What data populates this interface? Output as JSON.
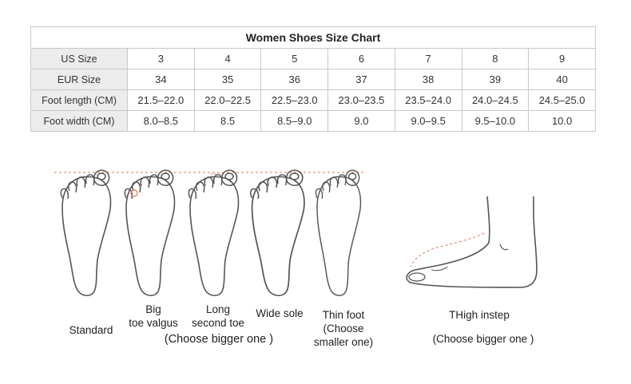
{
  "table": {
    "title": "Women Shoes Size Chart",
    "rows": [
      {
        "label": "US  Size",
        "cells": [
          "3",
          "4",
          "5",
          "6",
          "7",
          "8",
          "9"
        ]
      },
      {
        "label": "EUR Size",
        "cells": [
          "34",
          "35",
          "36",
          "37",
          "38",
          "39",
          "40"
        ]
      },
      {
        "label": "Foot length (CM)",
        "cells": [
          "21.5–22.0",
          "22.0–22.5",
          "22.5–23.0",
          "23.0–23.5",
          "23.5–24.0",
          "24.0–24.5",
          "24.5–25.0"
        ]
      },
      {
        "label": "Foot width (CM)",
        "cells": [
          "8.0–8.5",
          "8.5",
          "8.5–9.0",
          "9.0",
          "9.0–9.5",
          "9.5–10.0",
          "10.0"
        ]
      }
    ]
  },
  "foot_types": {
    "standard": "Standard",
    "big_toe": "Big\ntoe valgus",
    "long_second": "Long\nsecond toe",
    "wide_sole": "Wide sole",
    "thin_foot": "Thin foot\n(Choose\nsmaller one)",
    "choose_bigger": "(Choose bigger one )",
    "high_instep": "THigh instep",
    "choose_bigger_instep": "(Choose bigger one )"
  },
  "colors": {
    "outline": "#555555",
    "guide_line": "#e0735a",
    "header_bg": "#ececec",
    "border": "#c8c8c8"
  }
}
